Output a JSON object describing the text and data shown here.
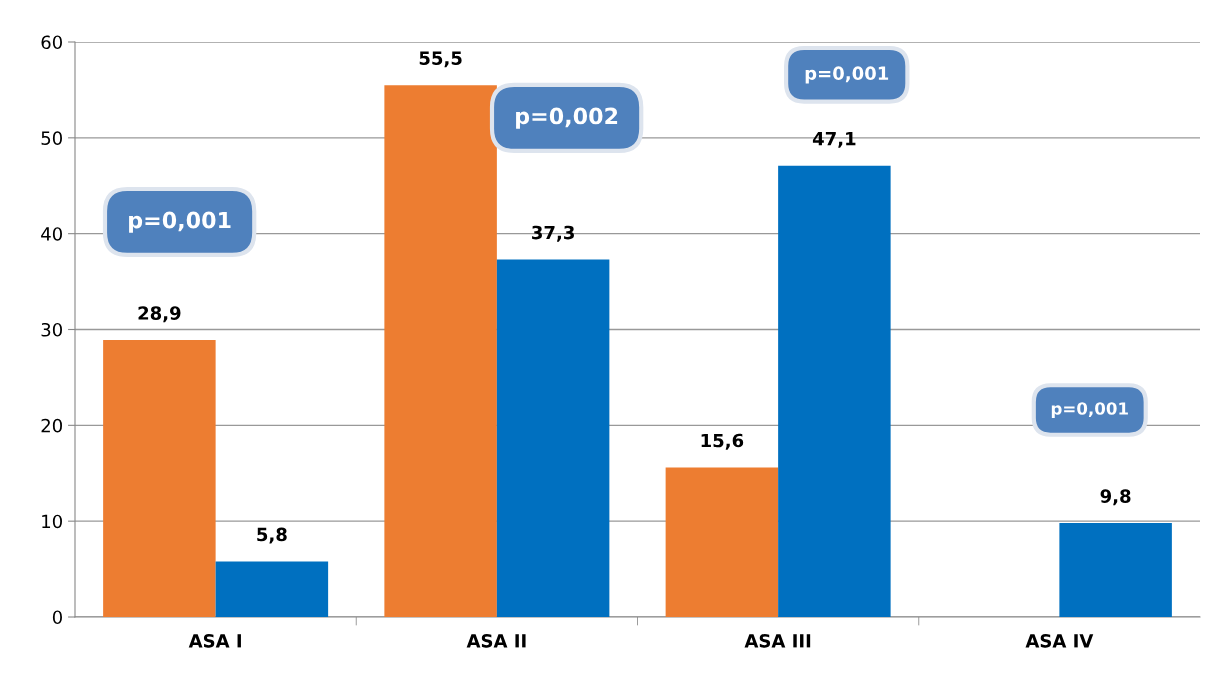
{
  "chart_data": {
    "type": "bar",
    "categories": [
      "ASA I",
      "ASA II",
      "ASA III",
      "ASA IV"
    ],
    "series": [
      {
        "color": "#ed7d31",
        "values": [
          28.9,
          55.5,
          15.6,
          null
        ],
        "value_labels": [
          "28,9",
          "55,5",
          "15,6",
          null
        ]
      },
      {
        "color": "#0070c0",
        "values": [
          5.8,
          37.3,
          47.1,
          9.8
        ],
        "value_labels": [
          "5,8",
          "37,3",
          "47,1",
          "9,8"
        ]
      }
    ],
    "ylim": [
      0,
      60
    ],
    "yticks": [
      0,
      10,
      20,
      30,
      40,
      50,
      60
    ],
    "grid": "y",
    "legend": false,
    "annotations": [
      "p=0,001",
      "p=0,002",
      "p=0,001",
      "p=0,001"
    ]
  }
}
